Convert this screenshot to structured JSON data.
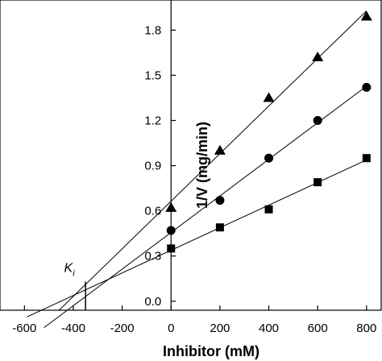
{
  "chart_data": {
    "type": "scatter",
    "title": "",
    "xlabel": "Inhibitor (mM)",
    "ylabel": "1/V (mg/min)",
    "xlim": [
      -700,
      860
    ],
    "ylim": [
      -0.06,
      2.0
    ],
    "x_ticks": [
      -600,
      -400,
      -200,
      0,
      200,
      400,
      600,
      800
    ],
    "y_ticks": [
      0.0,
      0.3,
      0.6,
      0.9,
      1.2,
      1.5,
      1.8
    ],
    "x_tick_labels": [
      "-600",
      "-400",
      "-200",
      "0",
      "200",
      "400",
      "600",
      "800"
    ],
    "y_tick_labels": [
      "0.0",
      "0.3",
      "0.6",
      "0.9",
      "1.2",
      "1.5",
      "1.8"
    ],
    "grid": false,
    "annotation": {
      "text": "K",
      "subscript": "i",
      "x": -350,
      "y": 0.13
    },
    "series": [
      {
        "marker": "triangle",
        "x": [
          0,
          200,
          400,
          600,
          800
        ],
        "y": [
          0.62,
          1.0,
          1.35,
          1.62,
          1.89
        ],
        "fit_x": [
          -460,
          800
        ]
      },
      {
        "marker": "circle",
        "x": [
          0,
          200,
          400,
          600,
          800
        ],
        "y": [
          0.47,
          0.67,
          0.95,
          1.2,
          1.42
        ],
        "fit_x": [
          -520,
          800
        ]
      },
      {
        "marker": "square",
        "x": [
          0,
          200,
          400,
          600,
          800
        ],
        "y": [
          0.35,
          0.49,
          0.61,
          0.79,
          0.95
        ],
        "fit_x": [
          -590,
          800
        ]
      }
    ]
  }
}
